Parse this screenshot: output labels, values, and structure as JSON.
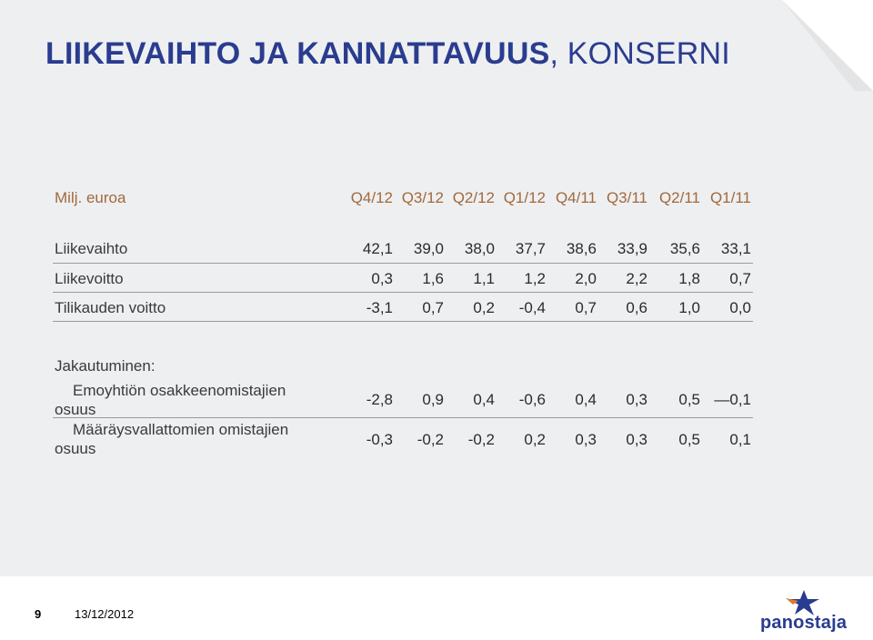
{
  "title": {
    "strong": "LIIKEVAIHTO JA KANNATTAVUUS",
    "light": ", KONSERNI"
  },
  "table": {
    "unit_label": "Milj. euroa",
    "columns": [
      "Q4/12",
      "Q3/12",
      "Q2/12",
      "Q1/12",
      "Q4/11",
      "Q3/11",
      "Q2/11",
      "Q1/11"
    ],
    "rows": [
      {
        "label": "Liikevaihto",
        "values": [
          "42,1",
          "39,0",
          "38,0",
          "37,7",
          "38,6",
          "33,9",
          "35,6",
          "33,1"
        ]
      },
      {
        "label": "Liikevoitto",
        "values": [
          "0,3",
          "1,6",
          "1,1",
          "1,2",
          "2,0",
          "2,2",
          "1,8",
          "0,7"
        ]
      },
      {
        "label": "Tilikauden voitto",
        "values": [
          "-3,1",
          "0,7",
          "0,2",
          "-0,4",
          "0,7",
          "0,6",
          "1,0",
          "0,0"
        ]
      }
    ],
    "breakdown_label": "Jakautuminen:",
    "breakdown_rows": [
      {
        "label": "Emoyhtiön osakkeenomistajien osuus",
        "values": [
          "-2,8",
          "0,9",
          "0,4",
          "-0,6",
          "0,4",
          "0,3",
          "0,5",
          "—0,1"
        ]
      },
      {
        "label": "Määräysvallattomien omistajien osuus",
        "values": [
          "-0,3",
          "-0,2",
          "-0,2",
          "0,2",
          "0,3",
          "0,3",
          "0,5",
          "0,1"
        ]
      }
    ]
  },
  "footer": {
    "page_number": "9",
    "date": "13/12/2012"
  },
  "logo": {
    "text": "panostaja",
    "icon": "star-icon"
  },
  "colors": {
    "title": "#2a3c8f",
    "header": "#a1693b",
    "background": "#eeeff1"
  }
}
